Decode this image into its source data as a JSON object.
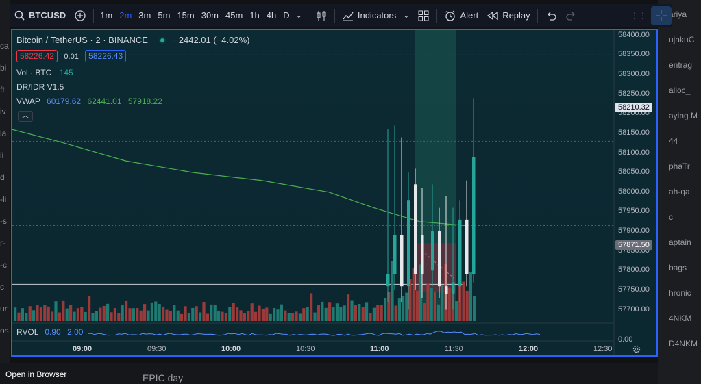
{
  "background": {
    "left_fragments": [
      "ca",
      "bi",
      "ft",
      "iv",
      "la",
      "li",
      "d",
      "-li",
      "-s",
      "r-",
      "-c",
      "c",
      "ur",
      "os"
    ],
    "right_fragments": [
      "ariya",
      "ujakuC",
      "entrag",
      "alloc_",
      "aying M",
      "44",
      "phaTr",
      "ah-qa",
      "c",
      "aptain",
      "bags",
      "hronic",
      "4NKM",
      "D4NKM"
    ],
    "bottom_text": "EPIC day",
    "open_in_browser": "Open in Browser"
  },
  "toolbar": {
    "symbol": "BTCUSD",
    "intervals": [
      "1m",
      "2m",
      "3m",
      "5m",
      "15m",
      "30m",
      "45m",
      "1h",
      "4h",
      "D"
    ],
    "active_interval": "2m",
    "indicators_label": "Indicators",
    "alert_label": "Alert",
    "replay_label": "Replay"
  },
  "legend": {
    "title": "Bitcoin / TetherUS · 2 · BINANCE",
    "change": "−2442.01 (−4.02%)",
    "sell_price": "58226.42",
    "spread": "0.01",
    "buy_price": "58226.43",
    "vol_label": "Vol · BTC",
    "vol_value": "145",
    "drd_label": "DR/IDR V1.5",
    "vwap_label": "VWAP",
    "vwap_values": [
      "60179.62",
      "62441.01",
      "57918.22"
    ]
  },
  "price_axis": {
    "ticks": [
      "58400.00",
      "58350.00",
      "58300.00",
      "58250.00",
      "58200.00",
      "58150.00",
      "58100.00",
      "58050.00",
      "58000.00",
      "57950.00",
      "57900.00",
      "57850.00",
      "57800.00",
      "57750.00",
      "57700.00"
    ],
    "last_price_tag": "58210.32",
    "cursor_price_tag": "57871.50",
    "rvol_zero": "0.00"
  },
  "time_axis": {
    "labels": [
      "09:00",
      "09:30",
      "10:00",
      "10:30",
      "11:00",
      "11:30",
      "12:00",
      "12:30"
    ],
    "bold": [
      "09:00",
      "10:00",
      "11:00",
      "12:00"
    ]
  },
  "rvol": {
    "label": "RVOL",
    "v1": "0.90",
    "v2": "2.00"
  },
  "colors": {
    "up": "#26a69a",
    "down": "#ef5350",
    "vwap": "#4caf50",
    "accent": "#2962ff"
  },
  "chart_data": {
    "type": "candlestick",
    "ylim": [
      57680,
      58410
    ],
    "vwap_path": [
      [
        0,
        58160
      ],
      [
        0.1,
        58130
      ],
      [
        0.25,
        58080
      ],
      [
        0.4,
        58050
      ],
      [
        0.55,
        58030
      ],
      [
        0.7,
        58000
      ],
      [
        0.8,
        57960
      ],
      [
        0.9,
        57925
      ],
      [
        1.0,
        57915
      ]
    ],
    "candles": [
      {
        "o": 57760,
        "h": 58160,
        "l": 57720,
        "c": 57790
      },
      {
        "o": 57790,
        "h": 58170,
        "l": 57750,
        "c": 57890
      },
      {
        "o": 57890,
        "h": 58140,
        "l": 57720,
        "c": 57760
      },
      {
        "o": 57760,
        "h": 58050,
        "l": 57700,
        "c": 57980
      },
      {
        "o": 58020,
        "h": 58060,
        "l": 57750,
        "c": 57790
      },
      {
        "o": 57890,
        "h": 58010,
        "l": 57730,
        "c": 57790
      },
      {
        "o": 57800,
        "h": 58020,
        "l": 57760,
        "c": 57900
      },
      {
        "o": 57900,
        "h": 57960,
        "l": 57730,
        "c": 57760
      },
      {
        "o": 57760,
        "h": 57990,
        "l": 57700,
        "c": 57740
      },
      {
        "o": 57740,
        "h": 57960,
        "l": 57700,
        "c": 57770
      },
      {
        "o": 57760,
        "h": 57980,
        "l": 57720,
        "c": 57930
      },
      {
        "o": 57930,
        "h": 58030,
        "l": 57760,
        "c": 57790
      },
      {
        "o": 57790,
        "h": 58240,
        "l": 57770,
        "c": 58090
      }
    ]
  }
}
